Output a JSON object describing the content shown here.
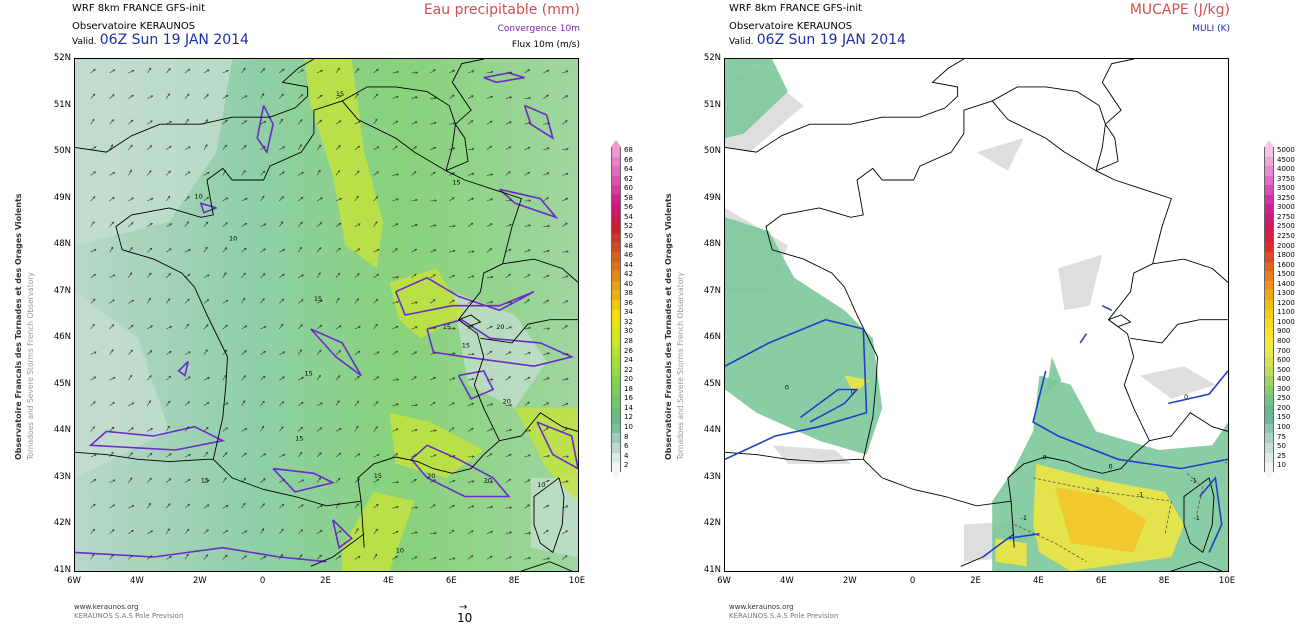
{
  "left_panel": {
    "header_line1": "WRF 8km FRANCE  GFS-init",
    "header_line2": "Observatoire KERAUNOS",
    "valid_label": "Valid.",
    "valid_time": "06Z Sun 19 JAN 2014",
    "field_title": "Eau precipitable (mm)",
    "subtitle1": "Convergence 10m",
    "subtitle2": "Flux 10m (m/s)",
    "y_labels": [
      "52N",
      "51N",
      "50N",
      "49N",
      "48N",
      "47N",
      "46N",
      "45N",
      "44N",
      "43N",
      "42N",
      "41N"
    ],
    "x_labels": [
      "6W",
      "4W",
      "2W",
      "0",
      "2E",
      "4E",
      "6E",
      "8E",
      "10E"
    ],
    "colorbar_labels": [
      "68",
      "66",
      "64",
      "62",
      "60",
      "58",
      "56",
      "54",
      "52",
      "50",
      "48",
      "46",
      "44",
      "42",
      "40",
      "38",
      "36",
      "34",
      "32",
      "30",
      "28",
      "26",
      "24",
      "22",
      "20",
      "18",
      "16",
      "14",
      "12",
      "10",
      "8",
      "6",
      "4",
      "2"
    ],
    "colorbar_colors": [
      "#ee99cc",
      "#e981c2",
      "#e26ab8",
      "#db52ad",
      "#d53ba3",
      "#d12090",
      "#cf1870",
      "#cb1850",
      "#c71f30",
      "#c8352a",
      "#cf4a26",
      "#d45f22",
      "#da731e",
      "#df881a",
      "#e49d16",
      "#eab212",
      "#efc70e",
      "#f4db0a",
      "#e8e40e",
      "#d6e41a",
      "#c8e626",
      "#b7e432",
      "#a6df3c",
      "#95d944",
      "#84d24c",
      "#79cc58",
      "#70c568",
      "#6cc07c",
      "#6cbc8c",
      "#78bf9f",
      "#9ccbb7",
      "#bed9cd",
      "#dcebe3",
      "#f2f7f4"
    ],
    "wind_ref_value": "10",
    "footer_url": "www.keraunos.org",
    "footer_company": "KERAUNOS S.A.S Pole Prevision",
    "contour_labels": [
      "10",
      "10",
      "15",
      "15",
      "15",
      "15",
      "15",
      "15",
      "15",
      "15",
      "20",
      "20",
      "20",
      "20",
      "10",
      "10",
      "15"
    ],
    "vertical_line1": "Observatoire Francais des Tornades et des Orages Violents",
    "vertical_line2": "Tornadoes and Severe Storms French Observatory"
  },
  "right_panel": {
    "header_line1": "WRF 8km FRANCE  GFS-init",
    "header_line2": "Observatoire KERAUNOS",
    "valid_label": "Valid.",
    "valid_time": "06Z Sun 19 JAN 2014",
    "field_title": "MUCAPE (J/kg)",
    "subtitle1": "MULI (K)",
    "y_labels": [
      "52N",
      "51N",
      "50N",
      "49N",
      "48N",
      "47N",
      "46N",
      "45N",
      "44N",
      "43N",
      "42N",
      "41N"
    ],
    "x_labels": [
      "6W",
      "4W",
      "2W",
      "0",
      "2E",
      "4E",
      "6E",
      "8E",
      "10E"
    ],
    "colorbar_labels": [
      "5000",
      "4500",
      "4000",
      "3750",
      "3500",
      "3250",
      "3000",
      "2750",
      "2500",
      "2250",
      "2000",
      "1800",
      "1600",
      "1500",
      "1400",
      "1300",
      "1200",
      "1100",
      "1000",
      "900",
      "800",
      "700",
      "600",
      "500",
      "400",
      "300",
      "250",
      "200",
      "150",
      "100",
      "75",
      "50",
      "25",
      "10"
    ],
    "colorbar_colors": [
      "#f7c4e8",
      "#f0a8dc",
      "#e98ad0",
      "#e26ec4",
      "#d850b6",
      "#cf34a6",
      "#c62494",
      "#cc1e78",
      "#d21c5a",
      "#d8203e",
      "#dc2e2a",
      "#e04a24",
      "#e4641e",
      "#e67c1a",
      "#ea9418",
      "#eca816",
      "#f0bc16",
      "#f2cc18",
      "#f6da20",
      "#f8e428",
      "#f4e83a",
      "#e8e848",
      "#d4e252",
      "#bcdc5a",
      "#a2d464",
      "#88cc70",
      "#72c47e",
      "#66ba8c",
      "#6cb89a",
      "#8cc4ae",
      "#aad0c0",
      "#c6ddd2",
      "#dfe9e4",
      "#f1f5f2"
    ],
    "muli_labels": [
      "0",
      "0",
      "0",
      "0",
      "-1",
      "-2",
      "-1",
      "-1",
      "-1",
      "-1",
      "0"
    ],
    "footer_url": "www.keraunos.org",
    "footer_company": "KERAUNOS S.A.S Pole Prevision",
    "vertical_line1": "Observatoire Francais des Tornades et des Orages Violents",
    "vertical_line2": "Tornadoes and Severe Storms French Observatory"
  }
}
